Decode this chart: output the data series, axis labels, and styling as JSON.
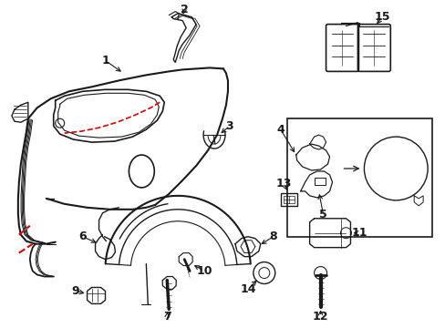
{
  "bg_color": "#ffffff",
  "line_color": "#1a1a1a",
  "red_color": "#dd0000",
  "fig_width": 4.89,
  "fig_height": 3.6,
  "dpi": 100
}
